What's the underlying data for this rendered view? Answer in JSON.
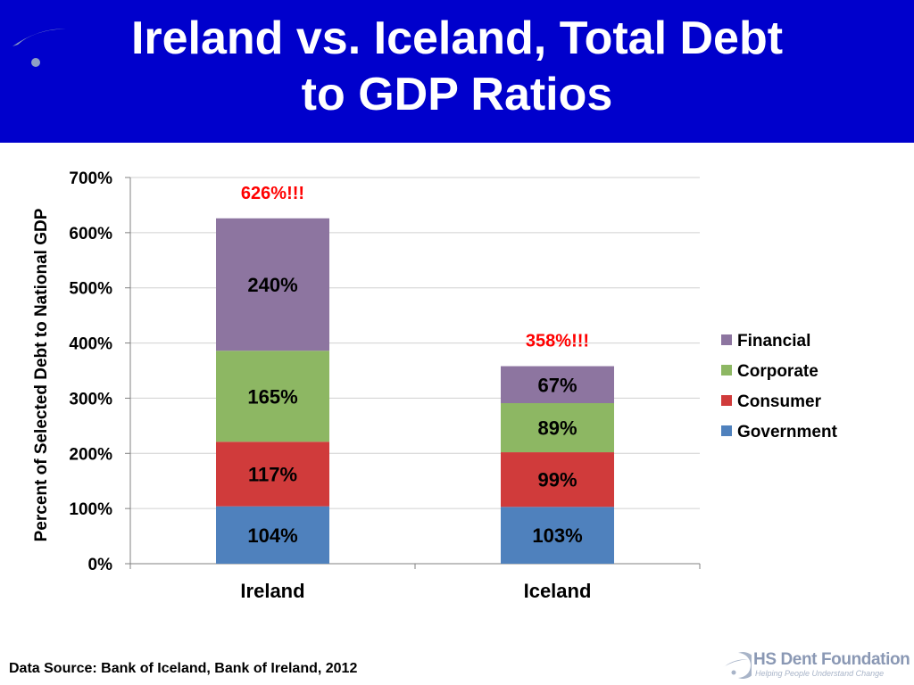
{
  "slide": {
    "title_line1": "Ireland vs. Iceland, Total Debt",
    "title_line2": "to GDP Ratios",
    "source_note": "Data Source: Bank of Iceland, Bank of Ireland, 2012",
    "logo_name": "HS Dent Foundation",
    "logo_tagline": "Helping People Understand Change",
    "header_color": "#0000cc",
    "logo_icon": "swoosh-dot-icon"
  },
  "chart_data": {
    "type": "bar",
    "stacked": true,
    "categories": [
      "Ireland",
      "Iceland"
    ],
    "series": [
      {
        "name": "Government",
        "values": [
          104,
          103
        ],
        "labels": [
          "104%",
          "103%"
        ],
        "color": "#4f81bd"
      },
      {
        "name": "Consumer",
        "values": [
          117,
          99
        ],
        "labels": [
          "117%",
          "99%"
        ],
        "color": "#d03b3b"
      },
      {
        "name": "Corporate",
        "values": [
          165,
          89
        ],
        "labels": [
          "165%",
          "89%"
        ],
        "color": "#8db763"
      },
      {
        "name": "Financial",
        "values": [
          240,
          67
        ],
        "labels": [
          "240%",
          "67%"
        ],
        "color": "#8d75a0"
      }
    ],
    "totals": [
      626,
      358
    ],
    "total_labels": [
      "626%!!!",
      "358%!!!"
    ],
    "total_label_color": "#ff0000",
    "ylabel": "Percent of Selected Debt to National GDP",
    "xlabel": "",
    "ylim": [
      0,
      700
    ],
    "yticks": [
      0,
      100,
      200,
      300,
      400,
      500,
      600,
      700
    ],
    "ytick_labels": [
      "0%",
      "100%",
      "200%",
      "300%",
      "400%",
      "500%",
      "600%",
      "700%"
    ],
    "grid": true,
    "legend_position": "right",
    "legend_order": [
      "Financial",
      "Corporate",
      "Consumer",
      "Government"
    ]
  }
}
